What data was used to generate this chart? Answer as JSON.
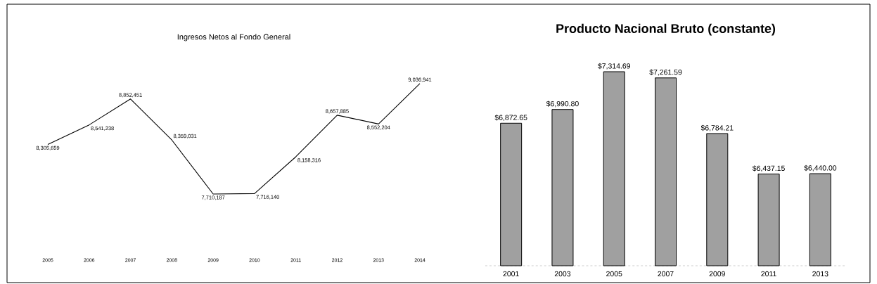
{
  "chart_data": [
    {
      "type": "line",
      "title": "Ingresos Netos al Fondo General",
      "categories": [
        "2005",
        "2006",
        "2007",
        "2008",
        "2009",
        "2010",
        "2011",
        "2012",
        "2013",
        "2014"
      ],
      "values": [
        8305659,
        8541238,
        8852451,
        8359031,
        7710187,
        7716140,
        8158316,
        8657885,
        8552204,
        9036941
      ],
      "value_labels": [
        "8,305,659",
        "8,541,238",
        "8,852,451",
        "8,359,031",
        "7,710,187",
        "7,716,140",
        "8,158,316",
        "8,657,885",
        "8,552,204",
        "9,036,941"
      ],
      "color": "#000000",
      "marker": "none"
    },
    {
      "type": "bar",
      "title": "Producto Nacional Bruto (constante)",
      "categories": [
        "2001",
        "2003",
        "2005",
        "2007",
        "2009",
        "2011",
        "2013"
      ],
      "values": [
        6872.65,
        6990.8,
        7314.69,
        7261.59,
        6784.21,
        6437.15,
        6440.0
      ],
      "value_labels": [
        "$6,872.65",
        "$6,990.80",
        "$7,314.69",
        "$7,261.59",
        "$6,784.21",
        "$6,437.15",
        "$6,440.00"
      ],
      "color": "#a0a0a0",
      "ylim": [
        5650,
        7314.69
      ]
    }
  ]
}
